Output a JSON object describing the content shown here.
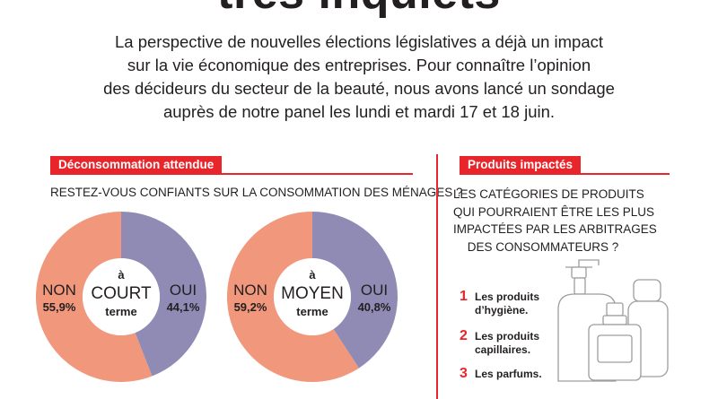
{
  "header": {
    "title": "très inquiets",
    "intro_lines": [
      "La perspective de nouvelles élections législatives a déjà un impact",
      "sur la vie économique des entreprises. Pour connaître l’opinion",
      "des décideurs du secteur de la beauté, nous avons lancé un sondage",
      "auprès de notre panel les lundi et mardi 17 et 18 juin."
    ]
  },
  "left_section": {
    "tag": "Déconsommation attendue",
    "question": "RESTEZ-VOUS CONFIANTS SUR LA CONSOMMATION DES MÉNAGES ?"
  },
  "right_section": {
    "tag": "Produits impactés",
    "question_lines": [
      "LES CATÉGORIES DE PRODUITS",
      "QUI POURRAIENT ÊTRE LES PLUS",
      "IMPACTÉES PAR LES ARBITRAGES",
      "DES CONSOMMATEURS ?"
    ],
    "items": [
      {
        "num": "1",
        "lines": [
          "Les produits",
          "d’hygiène."
        ]
      },
      {
        "num": "2",
        "lines": [
          "Les produits",
          "capillaires."
        ]
      },
      {
        "num": "3",
        "lines": [
          "Les parfums."
        ]
      }
    ]
  },
  "colors": {
    "accent": "#e8252b",
    "non": "#f0977c",
    "oui": "#8f8bb5",
    "text": "#231f20"
  },
  "icons": [
    "cosmetic-bottles-illustration"
  ],
  "chart_data": [
    {
      "type": "pie",
      "center_lines": [
        "à",
        "COURT",
        "terme"
      ],
      "slices": [
        {
          "label": "NON",
          "value": 55.9,
          "display": "55,9%"
        },
        {
          "label": "OUI",
          "value": 44.1,
          "display": "44,1%"
        }
      ]
    },
    {
      "type": "pie",
      "center_lines": [
        "à",
        "MOYEN",
        "terme"
      ],
      "slices": [
        {
          "label": "NON",
          "value": 59.2,
          "display": "59,2%"
        },
        {
          "label": "OUI",
          "value": 40.8,
          "display": "40,8%"
        }
      ]
    }
  ]
}
